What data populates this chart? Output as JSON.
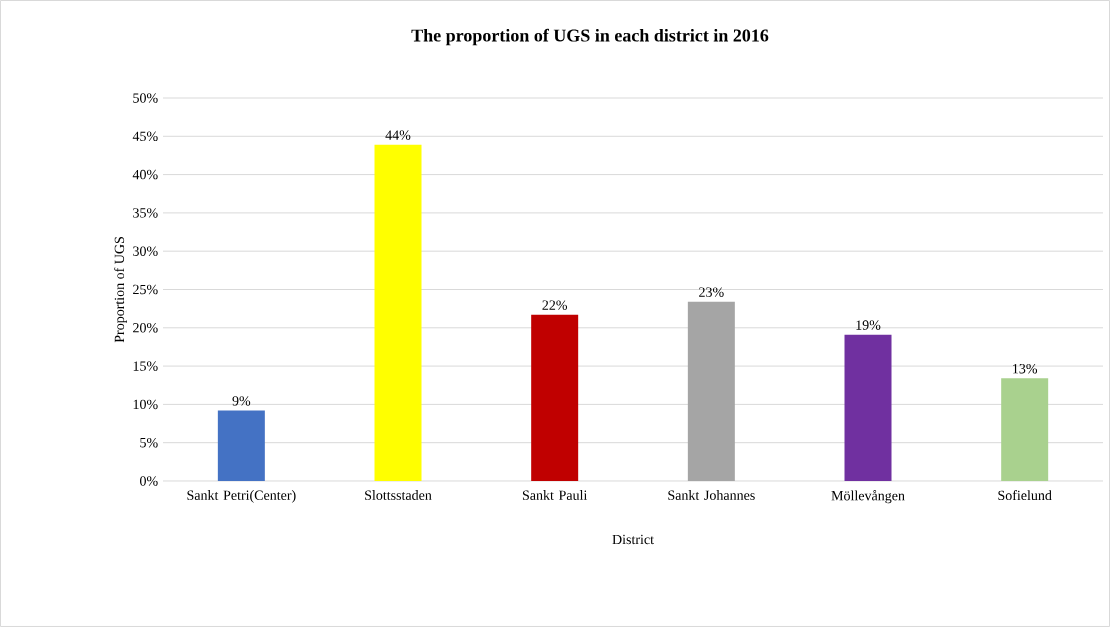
{
  "chart_data": {
    "type": "bar",
    "title": "The proportion of UGS in each district in 2016",
    "xlabel": "District",
    "ylabel": "Proportion of UGS",
    "categories": [
      "Sankt Petri(Center)",
      "Slottsstaden",
      "Sankt Pauli",
      "Sankt Johannes",
      "Möllevången",
      "Sofielund"
    ],
    "values": [
      9.2,
      43.9,
      21.7,
      23.4,
      19.1,
      13.4
    ],
    "value_labels": [
      "9%",
      "44%",
      "22%",
      "23%",
      "19%",
      "13%"
    ],
    "colors": [
      "#4472c4",
      "#ffff00",
      "#c00000",
      "#a5a5a5",
      "#7030a0",
      "#a9d18e"
    ],
    "ylim": [
      0,
      50
    ],
    "yticks": [
      {
        "value": 0,
        "label": "0%"
      },
      {
        "value": 5,
        "label": "5%"
      },
      {
        "value": 10,
        "label": "10%"
      },
      {
        "value": 15,
        "label": "15%"
      },
      {
        "value": 20,
        "label": "20%"
      },
      {
        "value": 25,
        "label": "25%"
      },
      {
        "value": 30,
        "label": "30%"
      },
      {
        "value": 35,
        "label": "35%"
      },
      {
        "value": 40,
        "label": "40%"
      },
      {
        "value": 45,
        "label": "45%"
      },
      {
        "value": 50,
        "label": "50%"
      }
    ],
    "grid": "y"
  }
}
